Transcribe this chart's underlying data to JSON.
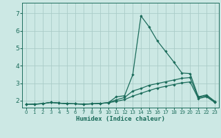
{
  "xlabel": "Humidex (Indice chaleur)",
  "bg_color": "#cce8e4",
  "grid_color": "#aaccc8",
  "line_color": "#1a6b5a",
  "xlim": [
    -0.5,
    23.5
  ],
  "ylim": [
    1.6,
    7.6
  ],
  "xticks": [
    0,
    1,
    2,
    3,
    4,
    5,
    6,
    7,
    8,
    9,
    10,
    11,
    12,
    13,
    14,
    15,
    16,
    17,
    18,
    19,
    20,
    21,
    22,
    23
  ],
  "yticks": [
    2,
    3,
    4,
    5,
    6,
    7
  ],
  "line1_x": [
    0,
    1,
    2,
    3,
    4,
    5,
    6,
    7,
    8,
    9,
    10,
    11,
    12,
    13,
    14,
    15,
    16,
    17,
    18,
    19,
    20,
    21,
    22,
    23
  ],
  "line1_y": [
    1.78,
    1.8,
    1.83,
    1.9,
    1.86,
    1.83,
    1.82,
    1.8,
    1.82,
    1.84,
    1.88,
    2.22,
    2.28,
    3.48,
    6.85,
    6.22,
    5.42,
    4.82,
    4.22,
    3.58,
    3.55,
    2.22,
    2.33,
    1.97
  ],
  "line2_x": [
    0,
    1,
    2,
    3,
    4,
    5,
    6,
    7,
    8,
    9,
    10,
    11,
    12,
    13,
    14,
    15,
    16,
    17,
    18,
    19,
    20,
    21,
    22,
    23
  ],
  "line2_y": [
    1.78,
    1.8,
    1.83,
    1.9,
    1.86,
    1.83,
    1.82,
    1.8,
    1.82,
    1.84,
    1.88,
    2.05,
    2.18,
    2.55,
    2.7,
    2.88,
    2.98,
    3.08,
    3.18,
    3.28,
    3.32,
    2.18,
    2.28,
    1.93
  ],
  "line3_x": [
    0,
    1,
    2,
    3,
    4,
    5,
    6,
    7,
    8,
    9,
    10,
    11,
    12,
    13,
    14,
    15,
    16,
    17,
    18,
    19,
    20,
    21,
    22,
    23
  ],
  "line3_y": [
    1.78,
    1.8,
    1.83,
    1.9,
    1.86,
    1.83,
    1.82,
    1.8,
    1.82,
    1.84,
    1.88,
    1.96,
    2.06,
    2.26,
    2.42,
    2.58,
    2.72,
    2.82,
    2.92,
    3.02,
    3.07,
    2.12,
    2.22,
    1.9
  ]
}
